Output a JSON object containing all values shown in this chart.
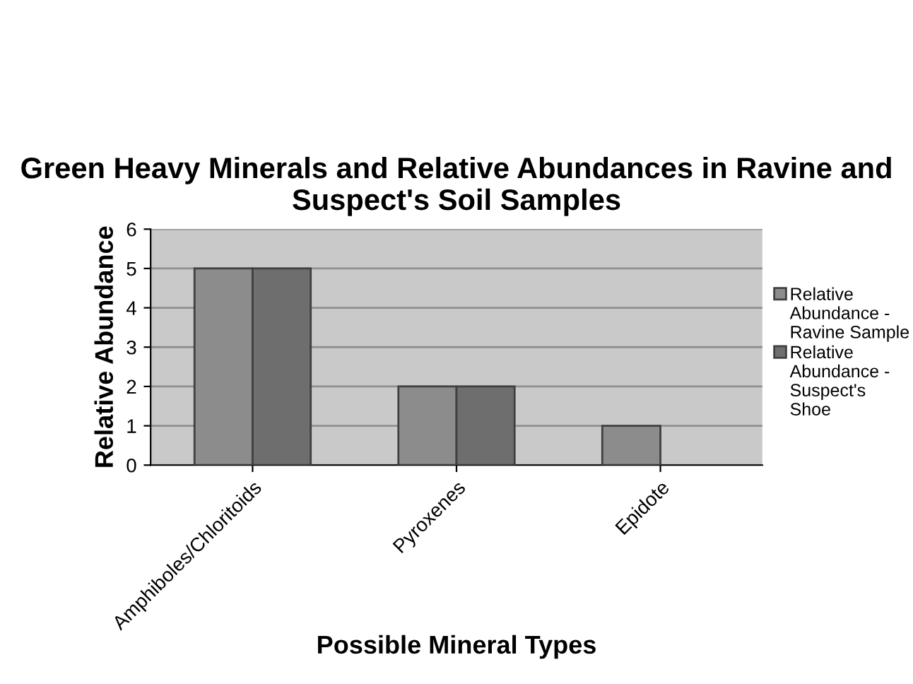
{
  "chart_data": {
    "type": "bar",
    "title": "Green Heavy Minerals and Relative Abundances in Ravine and Suspect's Soil Samples",
    "xlabel": "Possible Mineral Types",
    "ylabel": "Relative Abundance",
    "categories": [
      "Amphiboles/Chloritoids",
      "Pyroxenes",
      "Epidote"
    ],
    "series": [
      {
        "name": "Relative Abundance - Ravine Sample",
        "color": "#8c8c8c",
        "values": [
          5,
          2,
          1
        ]
      },
      {
        "name": "Relative Abundance - Suspect's Shoe",
        "color": "#6e6e6e",
        "values": [
          5,
          2,
          null
        ]
      }
    ],
    "ylim": [
      0,
      6
    ],
    "yticks": [
      0,
      1,
      2,
      3,
      4,
      5,
      6
    ],
    "grid": "y",
    "legend": "right"
  }
}
